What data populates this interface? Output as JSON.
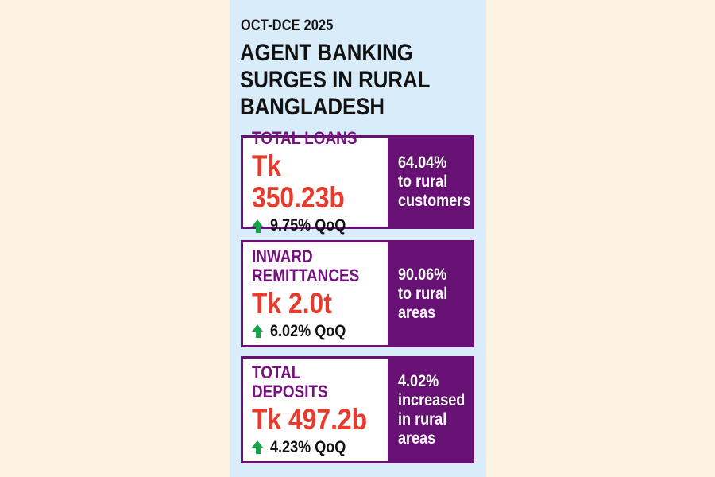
{
  "colors": {
    "background": "#fdf3e3",
    "panel": "#d9ecf9",
    "purple": "#671174",
    "title_purple": "#75127f",
    "red": "#e73b2e",
    "green": "#17a34a",
    "text_dark": "#121212",
    "white": "#ffffff"
  },
  "header": {
    "period": "OCT-DCE 2025",
    "title": "AGENT BANKING\nSURGES IN RURAL\nBANGLADESH"
  },
  "cards": [
    {
      "title": "TOTAL LOANS",
      "value": "Tk 350.23b",
      "change": "9.75% QoQ",
      "highlight": "64.04%\nto rural\ncustomers"
    },
    {
      "title": "INWARD\nREMITTANCES",
      "value": "Tk 2.0t",
      "change": "6.02% QoQ",
      "highlight": "90.06%\nto rural\nareas"
    },
    {
      "title": "TOTAL DEPOSITS",
      "value": "Tk 497.2b",
      "change": "4.23% QoQ",
      "highlight": "4.02%\nincreased\nin rural\nareas"
    }
  ],
  "chart_data": {
    "type": "table",
    "title": "AGENT BANKING SURGES IN RURAL BANGLADESH",
    "subtitle": "OCT-DCE 2025",
    "columns": [
      "metric",
      "value",
      "qoq_change_pct",
      "rural_note"
    ],
    "rows": [
      [
        "Total loans",
        "Tk 350.23b",
        9.75,
        "64.04% to rural customers"
      ],
      [
        "Inward remittances",
        "Tk 2.0t",
        6.02,
        "90.06% to rural areas"
      ],
      [
        "Total deposits",
        "Tk 497.2b",
        4.23,
        "4.02% increased in rural areas"
      ]
    ]
  }
}
